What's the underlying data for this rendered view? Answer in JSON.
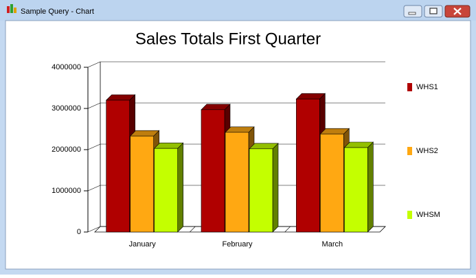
{
  "window": {
    "title": "Sample Query - Chart"
  },
  "chart_data": {
    "type": "bar",
    "title": "Sales Totals First Quarter",
    "categories": [
      "January",
      "February",
      "March"
    ],
    "series": [
      {
        "name": "WHS1",
        "color": "#b00000",
        "values": [
          3200000,
          2970000,
          3230000
        ]
      },
      {
        "name": "WHS2",
        "color": "#ffa812",
        "values": [
          2330000,
          2420000,
          2380000
        ]
      },
      {
        "name": "WHSM",
        "color": "#c4ff00",
        "values": [
          2030000,
          2020000,
          2050000
        ]
      }
    ],
    "ylim": [
      0,
      4000000
    ],
    "yticks": [
      0,
      1000000,
      2000000,
      3000000,
      4000000
    ],
    "grid": true,
    "legend": "right"
  }
}
